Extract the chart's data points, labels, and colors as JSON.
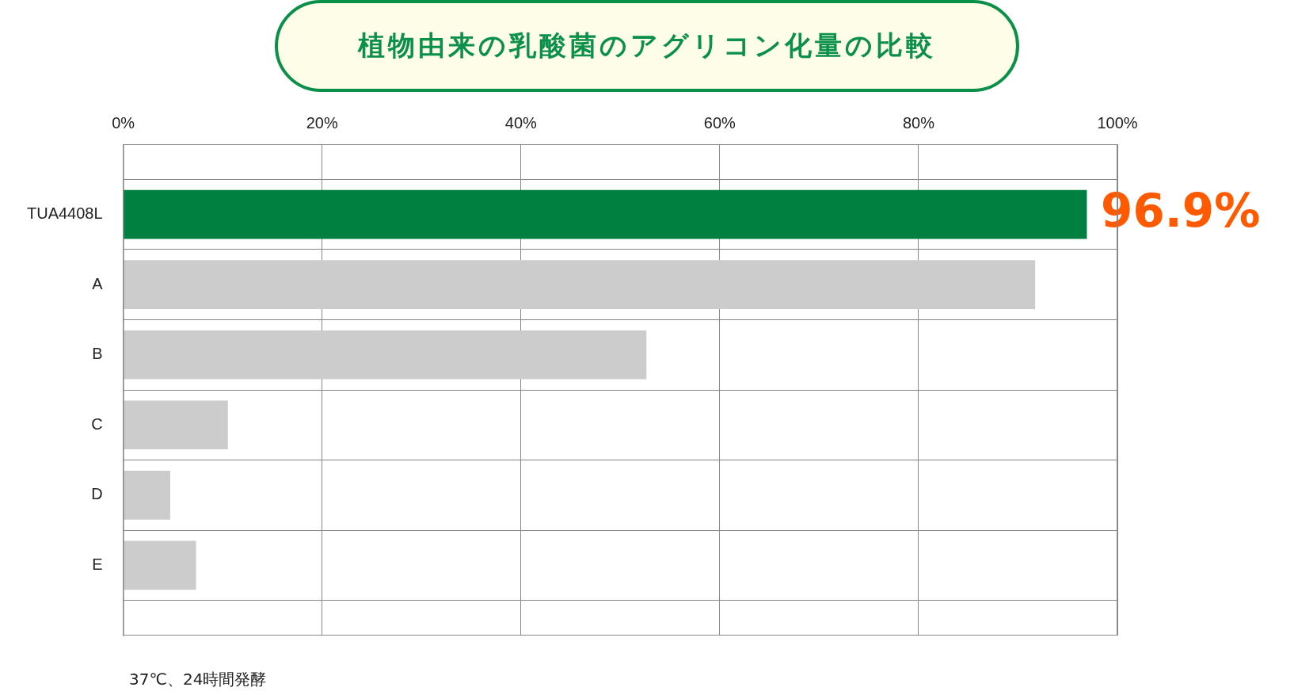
{
  "chart_data": {
    "type": "bar",
    "orientation": "horizontal",
    "title": "植物由来の乳酸菌のアグリコン化量の比較",
    "categories": [
      "TUA4408L",
      "A",
      "B",
      "C",
      "D",
      "E"
    ],
    "values": [
      96.9,
      91.7,
      52.6,
      10.5,
      4.7,
      7.3
    ],
    "colors": [
      "#008040",
      "#cccccc",
      "#cccccc",
      "#cccccc",
      "#cccccc",
      "#cccccc"
    ],
    "value_labels": [
      "96.9%",
      null,
      null,
      null,
      null,
      null
    ],
    "xlim": [
      0,
      100
    ],
    "xticks": [
      {
        "value": 0,
        "label": "0%"
      },
      {
        "value": 20,
        "label": "20%"
      },
      {
        "value": 40,
        "label": "40%"
      },
      {
        "value": 60,
        "label": "60%"
      },
      {
        "value": 80,
        "label": "80%"
      },
      {
        "value": 100,
        "label": "100%"
      }
    ],
    "grid": true,
    "legend": false,
    "annotations": [
      "37℃、24時間発酵"
    ]
  }
}
